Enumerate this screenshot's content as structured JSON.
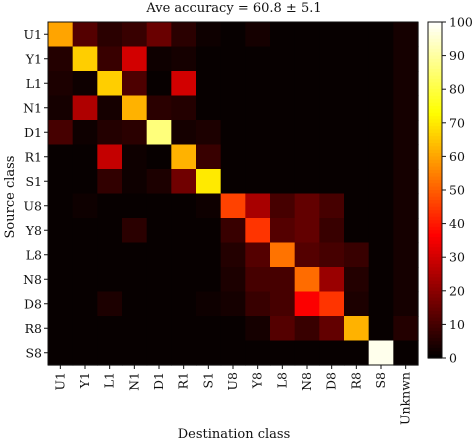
{
  "chart_data": {
    "type": "heatmap",
    "title": "Ave accuracy = 60.8 ± 5.1",
    "xlabel": "Destination class",
    "ylabel": "Source class",
    "row_labels": [
      "U1",
      "Y1",
      "L1",
      "N1",
      "D1",
      "R1",
      "S1",
      "U8",
      "Y8",
      "L8",
      "N8",
      "D8",
      "R8",
      "S8"
    ],
    "col_labels": [
      "U1",
      "Y1",
      "L1",
      "N1",
      "D1",
      "R1",
      "S1",
      "U8",
      "Y8",
      "L8",
      "N8",
      "D8",
      "R8",
      "S8",
      "Unknwn"
    ],
    "values": [
      [
        60,
        12,
        6,
        8,
        15,
        6,
        2,
        1,
        3,
        1,
        1,
        1,
        1,
        1,
        3
      ],
      [
        5,
        66,
        8,
        30,
        2,
        3,
        1,
        1,
        1,
        1,
        1,
        1,
        1,
        1,
        3
      ],
      [
        4,
        2,
        66,
        11,
        1,
        30,
        1,
        1,
        1,
        1,
        1,
        1,
        1,
        1,
        3
      ],
      [
        3,
        25,
        3,
        62,
        6,
        5,
        1,
        1,
        1,
        1,
        1,
        1,
        1,
        1,
        3
      ],
      [
        10,
        2,
        5,
        6,
        86,
        3,
        4,
        1,
        1,
        1,
        1,
        1,
        1,
        1,
        3
      ],
      [
        1,
        1,
        28,
        2,
        1,
        62,
        8,
        1,
        1,
        1,
        1,
        1,
        1,
        1,
        3
      ],
      [
        1,
        1,
        7,
        2,
        4,
        16,
        70,
        1,
        1,
        1,
        1,
        1,
        1,
        1,
        3
      ],
      [
        1,
        2,
        1,
        1,
        1,
        1,
        2,
        46,
        24,
        10,
        14,
        10,
        1,
        1,
        3
      ],
      [
        1,
        1,
        1,
        6,
        1,
        1,
        1,
        8,
        44,
        12,
        14,
        8,
        1,
        1,
        3
      ],
      [
        1,
        1,
        1,
        1,
        1,
        1,
        1,
        5,
        12,
        53,
        12,
        10,
        8,
        1,
        3
      ],
      [
        1,
        1,
        1,
        1,
        1,
        1,
        1,
        4,
        10,
        10,
        52,
        22,
        5,
        1,
        3
      ],
      [
        1,
        1,
        4,
        1,
        1,
        1,
        2,
        3,
        8,
        10,
        36,
        44,
        4,
        1,
        3
      ],
      [
        1,
        1,
        1,
        1,
        1,
        1,
        1,
        1,
        3,
        12,
        8,
        14,
        62,
        1,
        5
      ],
      [
        1,
        1,
        1,
        1,
        1,
        1,
        1,
        1,
        1,
        1,
        1,
        1,
        1,
        98,
        1
      ]
    ],
    "colorbar": {
      "min": 0,
      "max": 100,
      "ticks": [
        0,
        10,
        20,
        30,
        40,
        50,
        60,
        70,
        80,
        90,
        100
      ],
      "colormap": "hot"
    }
  }
}
